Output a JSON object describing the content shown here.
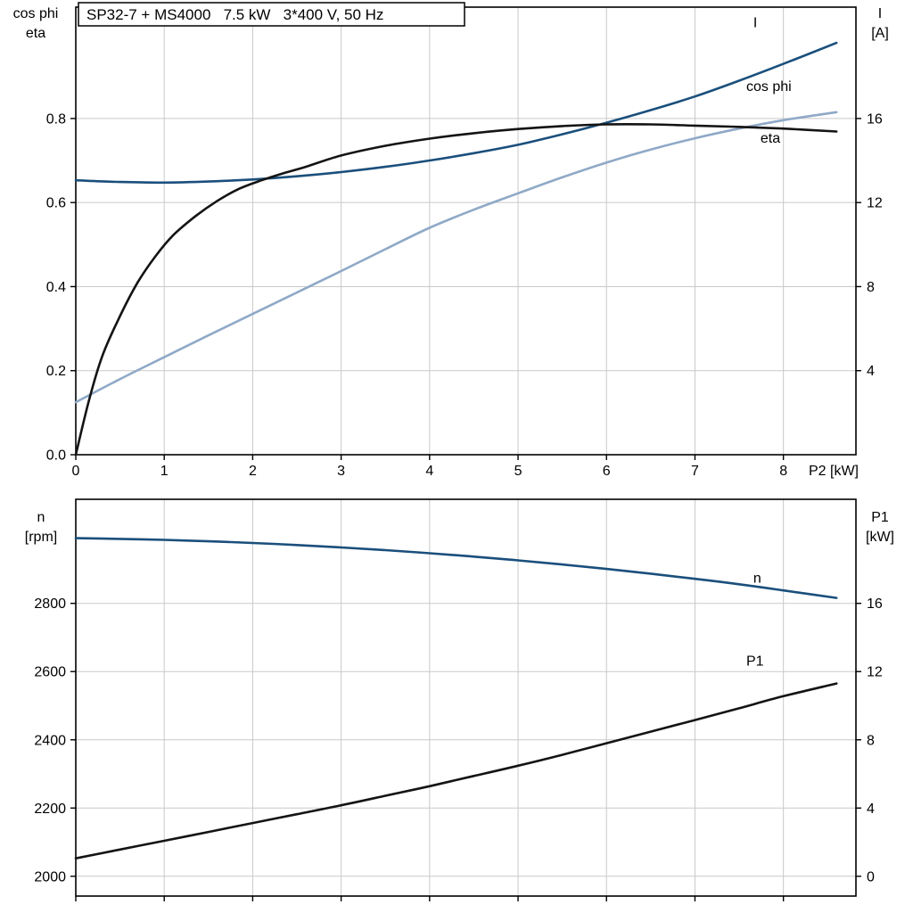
{
  "colors": {
    "dark_blue": "#1a4f7c",
    "light_blue": "#8fa9c7",
    "black": "#141414",
    "grid": "#c9c9c9",
    "axis": "#000000",
    "background": "#ffffff"
  },
  "chart_data": [
    {
      "type": "line",
      "title": "SP32-7 + MS4000   7.5 kW   3*400 V, 50 Hz",
      "left_axis_title_lines": [
        "cos phi",
        "eta"
      ],
      "right_axis_title_lines": [
        "I",
        "[A]"
      ],
      "x_axis_label": "P2 [kW]",
      "x_range": [
        0,
        8.82
      ],
      "x_grid": [
        1,
        2,
        3,
        4,
        5,
        6,
        7,
        8
      ],
      "x_ticks": [
        {
          "v": 0,
          "label": "0"
        },
        {
          "v": 1,
          "label": "1"
        },
        {
          "v": 2,
          "label": "2"
        },
        {
          "v": 3,
          "label": "3"
        },
        {
          "v": 4,
          "label": "4"
        },
        {
          "v": 5,
          "label": "5"
        },
        {
          "v": 6,
          "label": "6"
        },
        {
          "v": 7,
          "label": "7"
        },
        {
          "v": 8,
          "label": "8"
        }
      ],
      "y_range": [
        0,
        1.065
      ],
      "y_ticks": [
        {
          "v": 0.0,
          "label": "0.0"
        },
        {
          "v": 0.2,
          "label": "0.2"
        },
        {
          "v": 0.4,
          "label": "0.4"
        },
        {
          "v": 0.6,
          "label": "0.6"
        },
        {
          "v": 0.8,
          "label": "0.8"
        }
      ],
      "right_map": {
        "factor": 0.05,
        "offset": 0
      },
      "right_ticks": [
        {
          "v": 4,
          "label": "4"
        },
        {
          "v": 8,
          "label": "8"
        },
        {
          "v": 12,
          "label": "12"
        },
        {
          "v": 16,
          "label": "16"
        }
      ],
      "grid_on": true,
      "series": [
        {
          "name": "I",
          "axis": "right",
          "color": "dark_blue",
          "label": "I",
          "label_at": [
            7.66,
            20.35
          ],
          "points": [
            [
              0,
              13.06
            ],
            [
              0.5,
              12.98
            ],
            [
              1,
              12.95
            ],
            [
              1.5,
              13.0
            ],
            [
              2,
              13.1
            ],
            [
              2.5,
              13.25
            ],
            [
              3,
              13.45
            ],
            [
              3.5,
              13.7
            ],
            [
              4,
              14.0
            ],
            [
              4.5,
              14.35
            ],
            [
              5,
              14.75
            ],
            [
              5.5,
              15.25
            ],
            [
              6,
              15.8
            ],
            [
              6.5,
              16.4
            ],
            [
              7,
              17.05
            ],
            [
              7.5,
              17.8
            ],
            [
              8,
              18.6
            ],
            [
              8.6,
              19.6
            ]
          ]
        },
        {
          "name": "cos phi",
          "axis": "left",
          "color": "light_blue",
          "label": "cos phi",
          "label_at": [
            7.58,
            0.866
          ],
          "points": [
            [
              0,
              0.125
            ],
            [
              0.5,
              0.18
            ],
            [
              1,
              0.232
            ],
            [
              1.5,
              0.284
            ],
            [
              2,
              0.335
            ],
            [
              2.5,
              0.386
            ],
            [
              3,
              0.437
            ],
            [
              3.5,
              0.489
            ],
            [
              4,
              0.54
            ],
            [
              4.5,
              0.583
            ],
            [
              5,
              0.622
            ],
            [
              5.5,
              0.66
            ],
            [
              6,
              0.695
            ],
            [
              6.5,
              0.726
            ],
            [
              7,
              0.753
            ],
            [
              7.5,
              0.776
            ],
            [
              8,
              0.796
            ],
            [
              8.6,
              0.815
            ]
          ]
        },
        {
          "name": "eta",
          "axis": "left",
          "color": "black",
          "label": "eta",
          "label_at": [
            7.74,
            0.742
          ],
          "points": [
            [
              0,
              0
            ],
            [
              0.15,
              0.13
            ],
            [
              0.3,
              0.235
            ],
            [
              0.5,
              0.33
            ],
            [
              0.7,
              0.41
            ],
            [
              0.9,
              0.472
            ],
            [
              1.1,
              0.522
            ],
            [
              1.35,
              0.567
            ],
            [
              1.6,
              0.604
            ],
            [
              1.85,
              0.633
            ],
            [
              2.1,
              0.653
            ],
            [
              2.35,
              0.67
            ],
            [
              2.6,
              0.685
            ],
            [
              3,
              0.712
            ],
            [
              3.5,
              0.735
            ],
            [
              4,
              0.752
            ],
            [
              4.5,
              0.765
            ],
            [
              5,
              0.775
            ],
            [
              5.5,
              0.782
            ],
            [
              6,
              0.786
            ],
            [
              6.5,
              0.786
            ],
            [
              7,
              0.783
            ],
            [
              7.5,
              0.78
            ],
            [
              8,
              0.776
            ],
            [
              8.6,
              0.769
            ]
          ]
        }
      ]
    },
    {
      "type": "line",
      "title": "",
      "left_axis_title_lines": [
        "n",
        "[rpm]"
      ],
      "right_axis_title_lines": [
        "P1",
        "[kW]"
      ],
      "x_axis_label": "",
      "x_range": [
        0,
        8.82
      ],
      "x_grid": [
        1,
        2,
        3,
        4,
        5,
        6,
        7,
        8
      ],
      "x_ticks": [],
      "y_range": [
        1942,
        3105
      ],
      "y_ticks": [
        {
          "v": 2000,
          "label": "2000"
        },
        {
          "v": 2200,
          "label": "2200"
        },
        {
          "v": 2400,
          "label": "2400"
        },
        {
          "v": 2600,
          "label": "2600"
        },
        {
          "v": 2800,
          "label": "2800"
        }
      ],
      "right_map": {
        "factor": 50,
        "offset": 2000
      },
      "right_ticks": [
        {
          "v": 0,
          "label": "0"
        },
        {
          "v": 4,
          "label": "4"
        },
        {
          "v": 8,
          "label": "8"
        },
        {
          "v": 12,
          "label": "12"
        },
        {
          "v": 16,
          "label": "16"
        }
      ],
      "grid_on": true,
      "series": [
        {
          "name": "n",
          "axis": "left",
          "color": "dark_blue",
          "label": "n",
          "label_at": [
            7.66,
            2860
          ],
          "points": [
            [
              0,
              2991
            ],
            [
              0.5,
              2989
            ],
            [
              1,
              2986
            ],
            [
              1.5,
              2982
            ],
            [
              2,
              2977
            ],
            [
              2.5,
              2971
            ],
            [
              3,
              2964
            ],
            [
              3.5,
              2956
            ],
            [
              4,
              2947
            ],
            [
              4.5,
              2937
            ],
            [
              5,
              2926
            ],
            [
              5.5,
              2914
            ],
            [
              6,
              2901
            ],
            [
              6.5,
              2887
            ],
            [
              7,
              2872
            ],
            [
              7.5,
              2856
            ],
            [
              8,
              2838
            ],
            [
              8.6,
              2816
            ]
          ]
        },
        {
          "name": "P1",
          "axis": "right",
          "color": "black",
          "label": "P1",
          "label_at": [
            7.58,
            12.35
          ],
          "points": [
            [
              0,
              1.05
            ],
            [
              0.5,
              1.57
            ],
            [
              1,
              2.08
            ],
            [
              1.5,
              2.6
            ],
            [
              2,
              3.12
            ],
            [
              2.5,
              3.64
            ],
            [
              3,
              4.16
            ],
            [
              3.5,
              4.72
            ],
            [
              4,
              5.28
            ],
            [
              4.5,
              5.88
            ],
            [
              5,
              6.48
            ],
            [
              5.5,
              7.12
            ],
            [
              6,
              7.8
            ],
            [
              6.5,
              8.48
            ],
            [
              7,
              9.16
            ],
            [
              7.5,
              9.85
            ],
            [
              8,
              10.56
            ],
            [
              8.6,
              11.3
            ]
          ]
        }
      ]
    }
  ]
}
